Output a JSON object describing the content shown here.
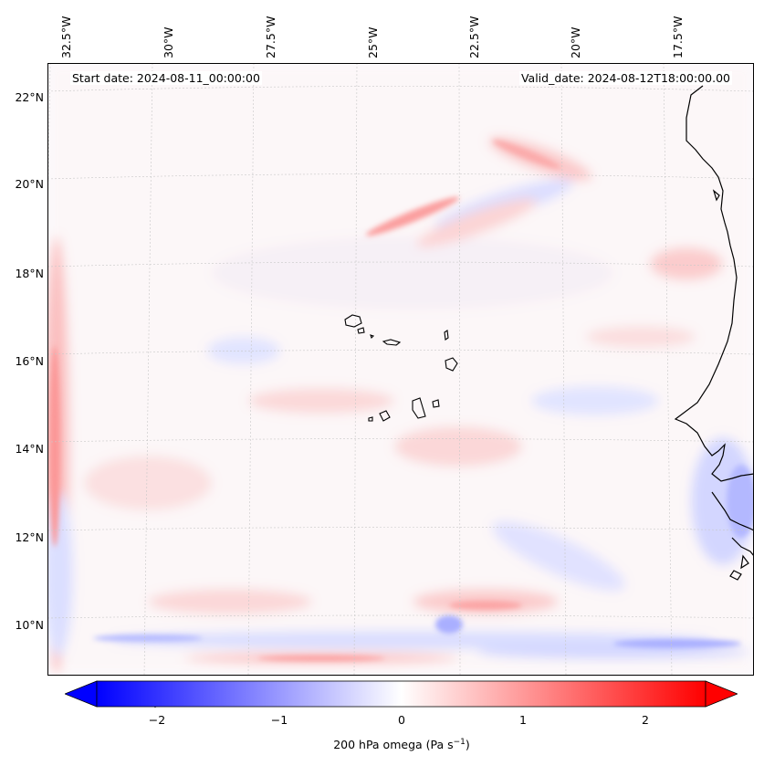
{
  "header": {
    "start_date": "Start date: 2024-08-11_00:00:00",
    "valid_date": "Valid_date: 2024-08-12T18:00:00.00"
  },
  "axes": {
    "lon_labels": [
      "32.5°W",
      "30°W",
      "27.5°W",
      "25°W",
      "22.5°W",
      "20°W",
      "17.5°W"
    ],
    "lat_labels": [
      "22°N",
      "20°N",
      "18°N",
      "16°N",
      "14°N",
      "12°N",
      "10°N"
    ]
  },
  "colorbar": {
    "ticks": [
      "−2",
      "−1",
      "0",
      "1",
      "2"
    ],
    "label_text": "200 hPa omega (Pa s",
    "label_exp": "−1",
    "label_close": ")",
    "min": -2.6,
    "max": 2.6,
    "low_color": "#0000ff",
    "high_color": "#ff0000"
  },
  "map": {
    "field": "200 hPa omega",
    "coastline_color": "#000000",
    "grid_color": "#c8c8c8"
  }
}
